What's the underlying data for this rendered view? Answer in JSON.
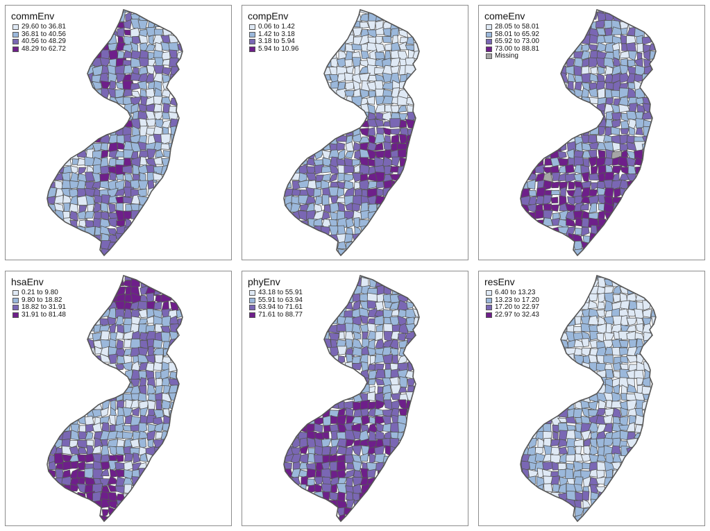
{
  "palette": {
    "c1": "#dfe9f5",
    "c2": "#9bb8db",
    "c3": "#7a67b4",
    "c4": "#6e1f8a",
    "missing": "#a6a6a6",
    "border": "#555555"
  },
  "panels": [
    {
      "title": "commEnv",
      "legend": [
        {
          "label": "29.60 to 36.81",
          "color": "#dfe9f5"
        },
        {
          "label": "36.81 to 40.56",
          "color": "#9bb8db"
        },
        {
          "label": "40.56 to 48.29",
          "color": "#7a67b4"
        },
        {
          "label": "48.29 to 62.72",
          "color": "#6e1f8a"
        }
      ]
    },
    {
      "title": "compEnv",
      "legend": [
        {
          "label": "0.06 to 1.42",
          "color": "#dfe9f5"
        },
        {
          "label": "1.42 to 3.18",
          "color": "#9bb8db"
        },
        {
          "label": "3.18 to 5.94",
          "color": "#7a67b4"
        },
        {
          "label": "5.94 to 10.96",
          "color": "#6e1f8a"
        }
      ]
    },
    {
      "title": "comeEnv",
      "legend": [
        {
          "label": "28.05 to 58.01",
          "color": "#dfe9f5"
        },
        {
          "label": "58.01 to 65.92",
          "color": "#9bb8db"
        },
        {
          "label": "65.92 to 73.00",
          "color": "#7a67b4"
        },
        {
          "label": "73.00 to 88.81",
          "color": "#6e1f8a"
        },
        {
          "label": "Missing",
          "color": "#a6a6a6"
        }
      ]
    },
    {
      "title": "hsaEnv",
      "legend": [
        {
          "label": "0.21 to 9.80",
          "color": "#dfe9f5"
        },
        {
          "label": "9.80 to 18.82",
          "color": "#9bb8db"
        },
        {
          "label": "18.82 to 31.91",
          "color": "#7a67b4"
        },
        {
          "label": "31.91 to 81.48",
          "color": "#6e1f8a"
        }
      ]
    },
    {
      "title": "phyEnv",
      "legend": [
        {
          "label": "43.18 to 55.91",
          "color": "#dfe9f5"
        },
        {
          "label": "55.91 to 63.94",
          "color": "#9bb8db"
        },
        {
          "label": "63.94 to 71.61",
          "color": "#7a67b4"
        },
        {
          "label": "71.61 to 88.77",
          "color": "#6e1f8a"
        }
      ]
    },
    {
      "title": "resEnv",
      "legend": [
        {
          "label": "6.40 to 13.23",
          "color": "#dfe9f5"
        },
        {
          "label": "13.23 to 17.20",
          "color": "#9bb8db"
        },
        {
          "label": "17.20 to 22.97",
          "color": "#7a67b4"
        },
        {
          "label": "22.97 to 32.43",
          "color": "#6e1f8a"
        }
      ]
    }
  ]
}
